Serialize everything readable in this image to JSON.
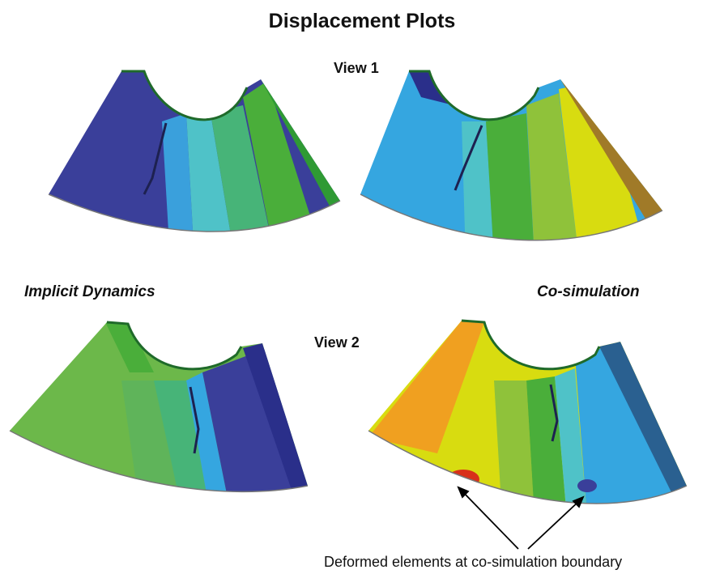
{
  "title": "Displacement Plots",
  "views": {
    "view1": "View 1",
    "view2": "View 2"
  },
  "methods": {
    "left": "Implicit Dynamics",
    "right": "Co-simulation"
  },
  "annotation": "Deformed elements at co-simulation boundary",
  "colors": {
    "dark_blue": "#3a3f9a",
    "navy": "#2a2f8a",
    "light_blue": "#35a6e0",
    "cyan": "#4fc2c8",
    "green": "#4aae3a",
    "yellow_green": "#8fc23a",
    "yellow": "#d8dc10",
    "orange": "#f0a020",
    "red": "#d8301a"
  }
}
